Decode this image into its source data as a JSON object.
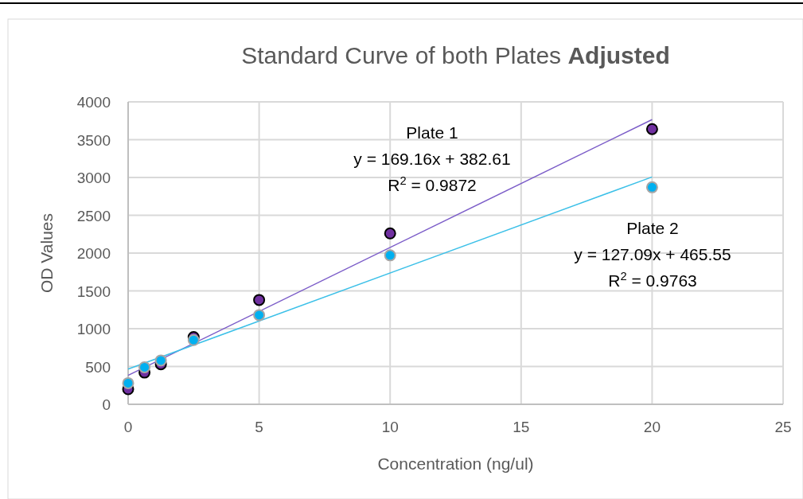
{
  "chart_data": {
    "type": "scatter",
    "title": "Standard Curve of both Plates Adjusted",
    "xlabel": "Concentration (ng/ul)",
    "ylabel": "OD Values",
    "xlim": [
      0,
      25
    ],
    "xticks": [
      0,
      5,
      10,
      15,
      20,
      25
    ],
    "ylim": [
      0,
      4000
    ],
    "yticks": [
      0,
      500,
      1000,
      1500,
      2000,
      2500,
      3000,
      3500,
      4000
    ],
    "grid": true,
    "marker": "circle",
    "series": [
      {
        "color": "#7030a0",
        "x": [
          0,
          0.625,
          1.25,
          2.5,
          5,
          10,
          20
        ],
        "values": [
          200,
          420,
          530,
          890,
          1380,
          2260,
          3640
        ]
      },
      {
        "color": "#00b0f0",
        "x": [
          0,
          0.625,
          1.25,
          2.5,
          5,
          10,
          20
        ],
        "values": [
          280,
          490,
          580,
          850,
          1180,
          1970,
          2870
        ]
      },
      {
        "type": "line",
        "color": "#7b5cc8",
        "x": [
          0,
          20
        ],
        "values": [
          383,
          3766
        ],
        "marker": "none",
        "line_style": "solid"
      },
      {
        "type": "line",
        "color": "#3cc0e8",
        "x": [
          0,
          20
        ],
        "values": [
          466,
          3007
        ],
        "marker": "none",
        "line_style": "solid"
      }
    ],
    "annotations": [
      "Plate 1",
      "y = 169.16x + 382.61",
      "R$^{2}$ = 0.9872",
      "Plate 2",
      "y = 127.09x + 465.55",
      "R$^{2}$ = 0.9763"
    ]
  }
}
